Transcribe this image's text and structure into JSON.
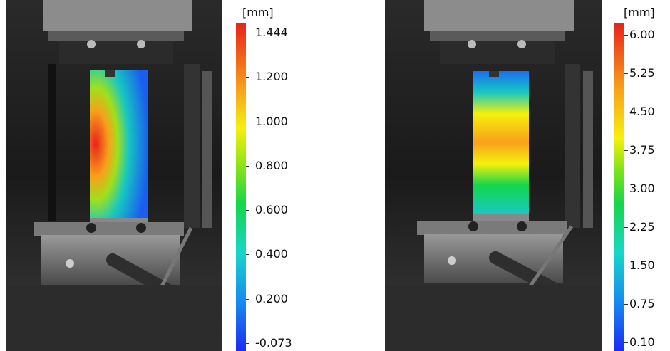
{
  "figures": [
    {
      "id": "left",
      "unit": "[mm]",
      "scale_labels": [
        "1.444",
        "1.200",
        "1.000",
        "0.800",
        "0.600",
        "0.400",
        "0.200",
        "-0.073"
      ],
      "scale_colors": [
        "#e8231a",
        "#f7a11a",
        "#f6f00c",
        "#7be31a",
        "#15d64b",
        "#18d6c9",
        "#168bf0",
        "#1a2cf2"
      ]
    },
    {
      "id": "right",
      "unit": "[mm]",
      "scale_labels": [
        "6.00",
        "5.25",
        "4.50",
        "3.75",
        "3.00",
        "2.25",
        "1.50",
        "0.75",
        "0.10"
      ],
      "scale_colors": [
        "#e8231a",
        "#f7a11a",
        "#f6f00c",
        "#7be31a",
        "#15d64b",
        "#18d6c9",
        "#168bf0",
        "#1a2cf2"
      ]
    }
  ]
}
